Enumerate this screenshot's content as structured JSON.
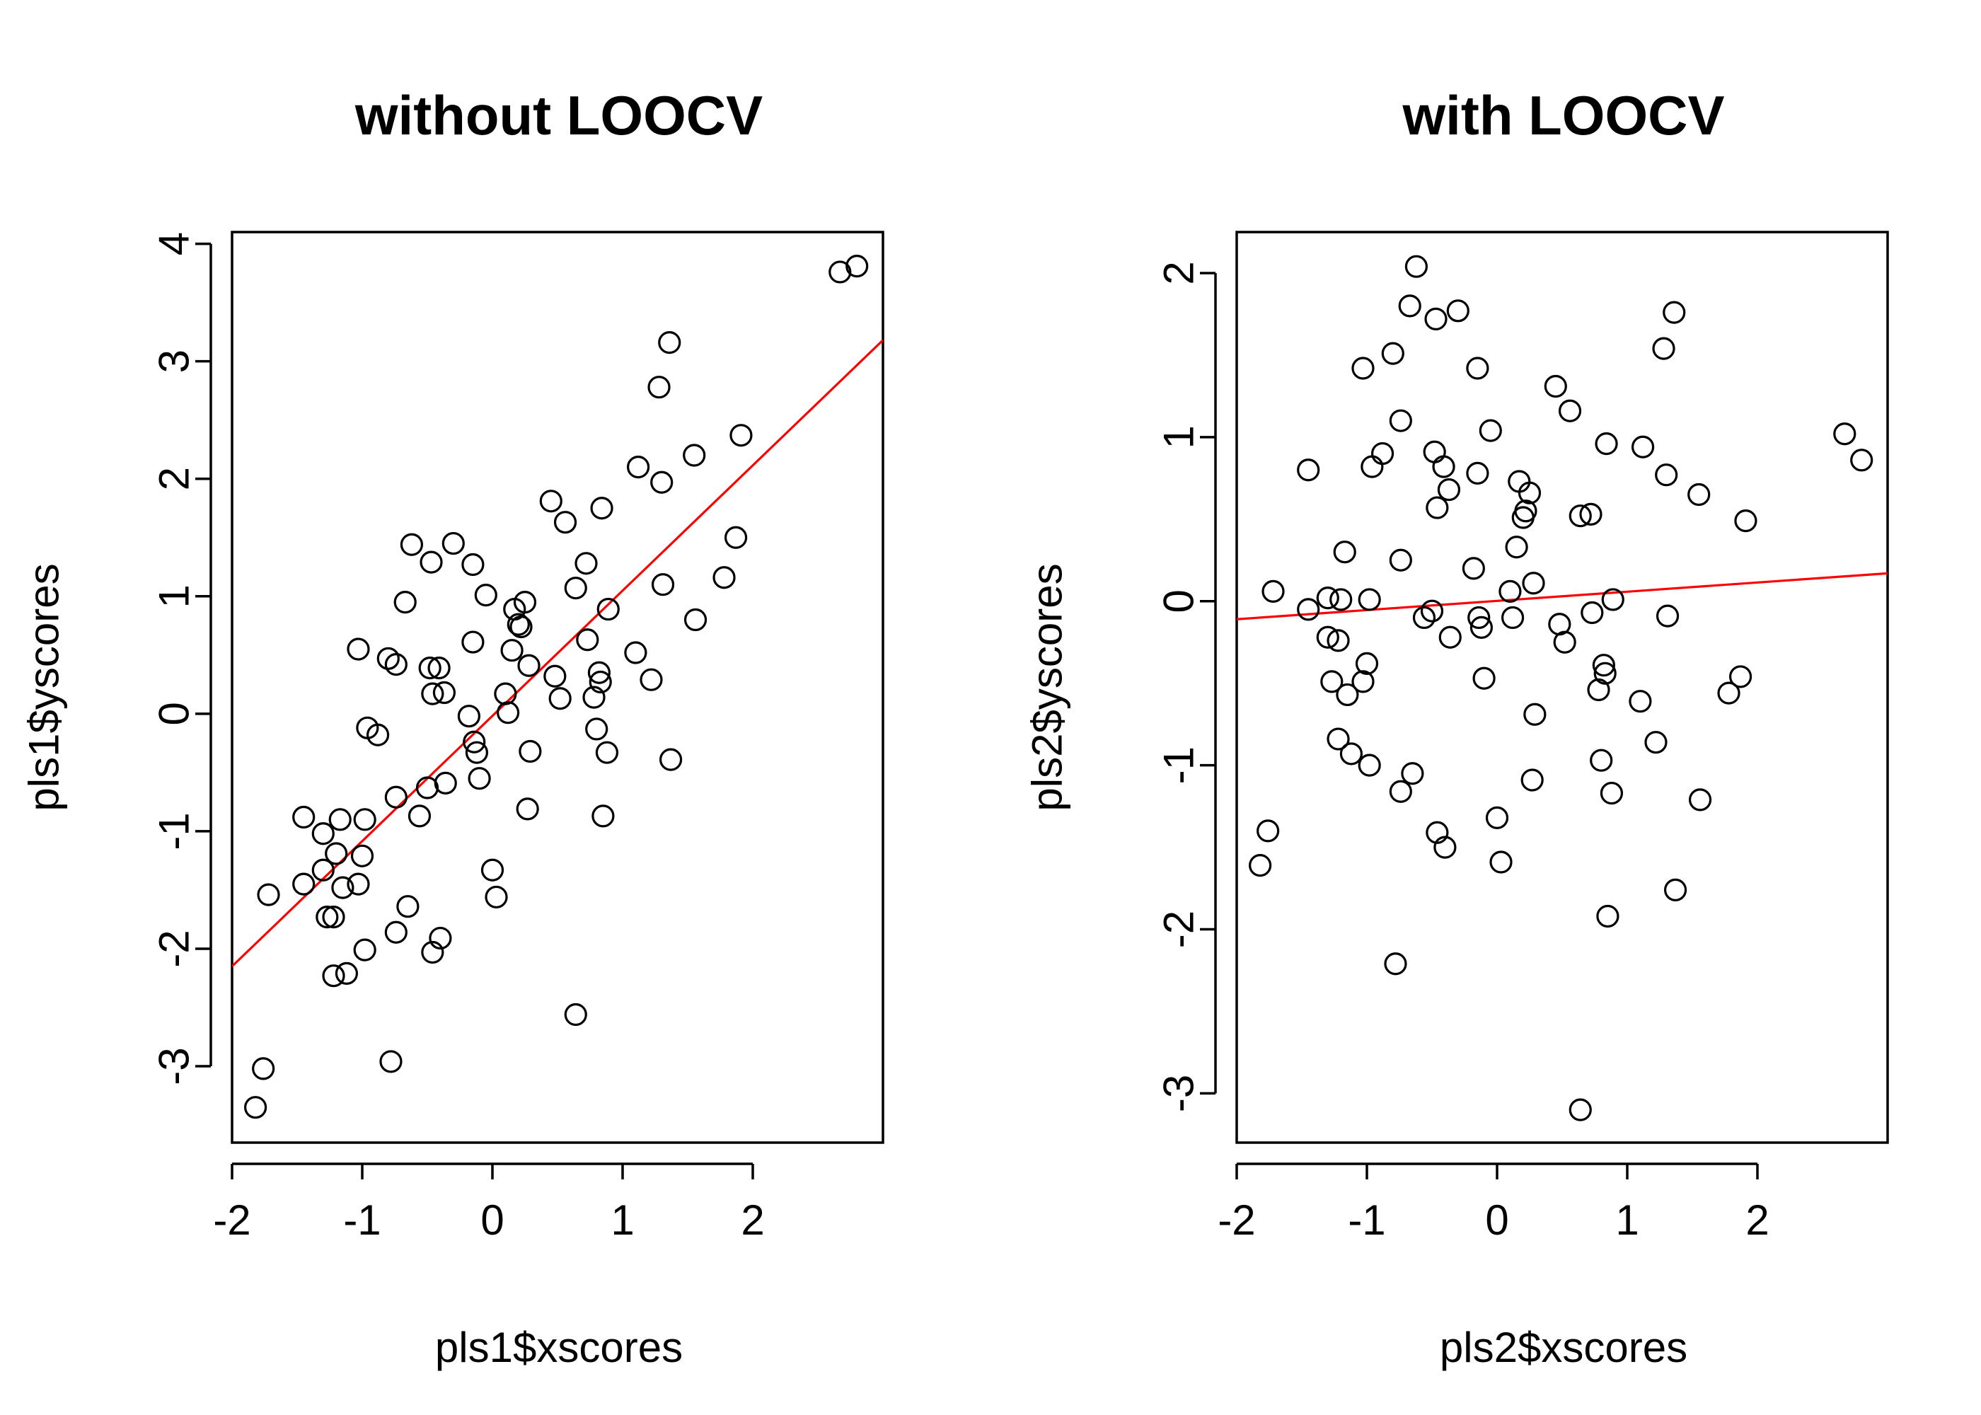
{
  "chart_data": [
    {
      "type": "scatter",
      "title": "without LOOCV",
      "xlabel": "pls1$xscores",
      "ylabel": "pls1$yscores",
      "xlim": [
        -2,
        3
      ],
      "ylim": [
        -3.65,
        4.1
      ],
      "xticks": [
        -2,
        -1,
        0,
        1,
        2
      ],
      "yticks": [
        -3,
        -2,
        -1,
        0,
        1,
        2,
        3,
        4
      ],
      "xtick_labels": [
        "-2",
        "-1",
        "0",
        "1",
        "2"
      ],
      "ytick_labels": [
        "-3",
        "-2",
        "-1",
        "0",
        "1",
        "2",
        "3",
        "4"
      ],
      "regression_line": {
        "color": "#ff0000",
        "x": [
          -2,
          3
        ],
        "y": [
          -2.15,
          3.18
        ]
      },
      "points": [
        [
          -1.82,
          -3.35
        ],
        [
          -1.76,
          -3.02
        ],
        [
          -1.72,
          -1.54
        ],
        [
          -1.45,
          -0.88
        ],
        [
          -1.45,
          -1.45
        ],
        [
          -1.3,
          -1.02
        ],
        [
          -1.3,
          -1.33
        ],
        [
          -1.27,
          -1.73
        ],
        [
          -1.22,
          -1.73
        ],
        [
          -1.22,
          -2.23
        ],
        [
          -1.2,
          -1.19
        ],
        [
          -1.17,
          -0.9
        ],
        [
          -1.15,
          -1.48
        ],
        [
          -1.12,
          -2.21
        ],
        [
          -1.03,
          0.55
        ],
        [
          -1.03,
          -1.45
        ],
        [
          -1.0,
          -1.21
        ],
        [
          -0.98,
          -0.9
        ],
        [
          -0.98,
          -2.01
        ],
        [
          -0.96,
          -0.12
        ],
        [
          -0.88,
          -0.18
        ],
        [
          -0.8,
          0.47
        ],
        [
          -0.78,
          -2.96
        ],
        [
          -0.74,
          0.42
        ],
        [
          -0.74,
          -0.71
        ],
        [
          -0.74,
          -1.86
        ],
        [
          -0.67,
          0.95
        ],
        [
          -0.65,
          -1.64
        ],
        [
          -0.62,
          1.44
        ],
        [
          -0.56,
          -0.87
        ],
        [
          -0.5,
          -0.63
        ],
        [
          -0.48,
          0.39
        ],
        [
          -0.47,
          1.29
        ],
        [
          -0.46,
          0.17
        ],
        [
          -0.46,
          -2.03
        ],
        [
          -0.41,
          0.39
        ],
        [
          -0.4,
          -1.91
        ],
        [
          -0.37,
          0.18
        ],
        [
          -0.36,
          -0.59
        ],
        [
          -0.3,
          1.45
        ],
        [
          -0.18,
          -0.02
        ],
        [
          -0.15,
          0.61
        ],
        [
          -0.15,
          1.27
        ],
        [
          -0.14,
          -0.24
        ],
        [
          -0.12,
          -0.33
        ],
        [
          -0.1,
          -0.55
        ],
        [
          -0.05,
          1.01
        ],
        [
          0.0,
          -1.33
        ],
        [
          0.03,
          -1.56
        ],
        [
          0.1,
          0.17
        ],
        [
          0.12,
          0.01
        ],
        [
          0.15,
          0.54
        ],
        [
          0.17,
          0.89
        ],
        [
          0.2,
          0.76
        ],
        [
          0.22,
          0.74
        ],
        [
          0.25,
          0.95
        ],
        [
          0.27,
          -0.81
        ],
        [
          0.28,
          0.41
        ],
        [
          0.29,
          -0.32
        ],
        [
          0.45,
          1.81
        ],
        [
          0.48,
          0.32
        ],
        [
          0.52,
          0.13
        ],
        [
          0.56,
          1.63
        ],
        [
          0.64,
          1.07
        ],
        [
          0.64,
          -2.56
        ],
        [
          0.72,
          1.28
        ],
        [
          0.73,
          0.63
        ],
        [
          0.78,
          0.14
        ],
        [
          0.8,
          -0.13
        ],
        [
          0.82,
          0.35
        ],
        [
          0.83,
          0.27
        ],
        [
          0.84,
          1.75
        ],
        [
          0.85,
          -0.87
        ],
        [
          0.88,
          -0.33
        ],
        [
          0.89,
          0.89
        ],
        [
          1.1,
          0.52
        ],
        [
          1.12,
          2.1
        ],
        [
          1.22,
          0.29
        ],
        [
          1.28,
          2.78
        ],
        [
          1.3,
          1.97
        ],
        [
          1.31,
          1.1
        ],
        [
          1.36,
          3.16
        ],
        [
          1.37,
          -0.39
        ],
        [
          1.55,
          2.2
        ],
        [
          1.56,
          0.8
        ],
        [
          1.78,
          1.16
        ],
        [
          1.87,
          1.5
        ],
        [
          1.91,
          2.37
        ],
        [
          2.67,
          3.76
        ],
        [
          2.8,
          3.81
        ]
      ]
    },
    {
      "type": "scatter",
      "title": "with LOOCV",
      "xlabel": "pls2$xscores",
      "ylabel": "pls2$yscores",
      "xlim": [
        -2,
        3
      ],
      "ylim": [
        -3.3,
        2.25
      ],
      "xticks": [
        -2,
        -1,
        0,
        1,
        2
      ],
      "yticks": [
        -3,
        -2,
        -1,
        0,
        1,
        2
      ],
      "xtick_labels": [
        "-2",
        "-1",
        "0",
        "1",
        "2"
      ],
      "ytick_labels": [
        "-3",
        "-2",
        "-1",
        "0",
        "1",
        "2"
      ],
      "regression_line": {
        "color": "#ff0000",
        "x": [
          -2,
          3
        ],
        "y": [
          -0.11,
          0.17
        ]
      },
      "points": [
        [
          -1.82,
          -1.61
        ],
        [
          -1.76,
          -1.4
        ],
        [
          -1.72,
          0.06
        ],
        [
          -1.45,
          0.8
        ],
        [
          -1.45,
          -0.05
        ],
        [
          -1.3,
          0.02
        ],
        [
          -1.3,
          -0.22
        ],
        [
          -1.27,
          -0.49
        ],
        [
          -1.22,
          -0.24
        ],
        [
          -1.22,
          -0.84
        ],
        [
          -1.2,
          0.01
        ],
        [
          -1.17,
          0.3
        ],
        [
          -1.15,
          -0.57
        ],
        [
          -1.12,
          -0.93
        ],
        [
          -1.03,
          1.42
        ],
        [
          -1.03,
          -0.49
        ],
        [
          -1.0,
          -0.38
        ],
        [
          -0.98,
          0.01
        ],
        [
          -0.98,
          -1.0
        ],
        [
          -0.96,
          0.82
        ],
        [
          -0.88,
          0.9
        ],
        [
          -0.8,
          1.51
        ],
        [
          -0.78,
          -2.21
        ],
        [
          -0.74,
          1.1
        ],
        [
          -0.74,
          0.25
        ],
        [
          -0.74,
          -1.16
        ],
        [
          -0.67,
          1.8
        ],
        [
          -0.65,
          -1.05
        ],
        [
          -0.62,
          2.04
        ],
        [
          -0.56,
          -0.1
        ],
        [
          -0.5,
          -0.06
        ],
        [
          -0.48,
          0.91
        ],
        [
          -0.47,
          1.72
        ],
        [
          -0.46,
          0.57
        ],
        [
          -0.46,
          -1.41
        ],
        [
          -0.41,
          0.82
        ],
        [
          -0.4,
          -1.5
        ],
        [
          -0.37,
          0.68
        ],
        [
          -0.36,
          -0.22
        ],
        [
          -0.3,
          1.77
        ],
        [
          -0.18,
          0.2
        ],
        [
          -0.15,
          0.78
        ],
        [
          -0.15,
          1.42
        ],
        [
          -0.14,
          -0.1
        ],
        [
          -0.12,
          -0.16
        ],
        [
          -0.1,
          -0.47
        ],
        [
          -0.05,
          1.04
        ],
        [
          0.0,
          -1.32
        ],
        [
          0.03,
          -1.59
        ],
        [
          0.1,
          0.06
        ],
        [
          0.12,
          -0.1
        ],
        [
          0.15,
          0.33
        ],
        [
          0.17,
          0.73
        ],
        [
          0.2,
          0.51
        ],
        [
          0.22,
          0.55
        ],
        [
          0.25,
          0.66
        ],
        [
          0.27,
          -1.09
        ],
        [
          0.28,
          0.11
        ],
        [
          0.29,
          -0.69
        ],
        [
          0.45,
          1.31
        ],
        [
          0.48,
          -0.14
        ],
        [
          0.52,
          -0.25
        ],
        [
          0.56,
          1.16
        ],
        [
          0.64,
          0.52
        ],
        [
          0.64,
          -3.1
        ],
        [
          0.72,
          0.53
        ],
        [
          0.73,
          -0.07
        ],
        [
          0.78,
          -0.54
        ],
        [
          0.8,
          -0.97
        ],
        [
          0.82,
          -0.39
        ],
        [
          0.83,
          -0.44
        ],
        [
          0.84,
          0.96
        ],
        [
          0.85,
          -1.92
        ],
        [
          0.88,
          -1.17
        ],
        [
          0.89,
          0.01
        ],
        [
          1.1,
          -0.61
        ],
        [
          1.12,
          0.94
        ],
        [
          1.22,
          -0.86
        ],
        [
          1.28,
          1.54
        ],
        [
          1.3,
          0.77
        ],
        [
          1.31,
          -0.09
        ],
        [
          1.36,
          1.76
        ],
        [
          1.37,
          -1.76
        ],
        [
          1.55,
          0.65
        ],
        [
          1.56,
          -1.21
        ],
        [
          1.78,
          -0.56
        ],
        [
          1.87,
          -0.46
        ],
        [
          1.91,
          0.49
        ],
        [
          2.67,
          1.02
        ],
        [
          2.8,
          0.86
        ]
      ]
    }
  ]
}
